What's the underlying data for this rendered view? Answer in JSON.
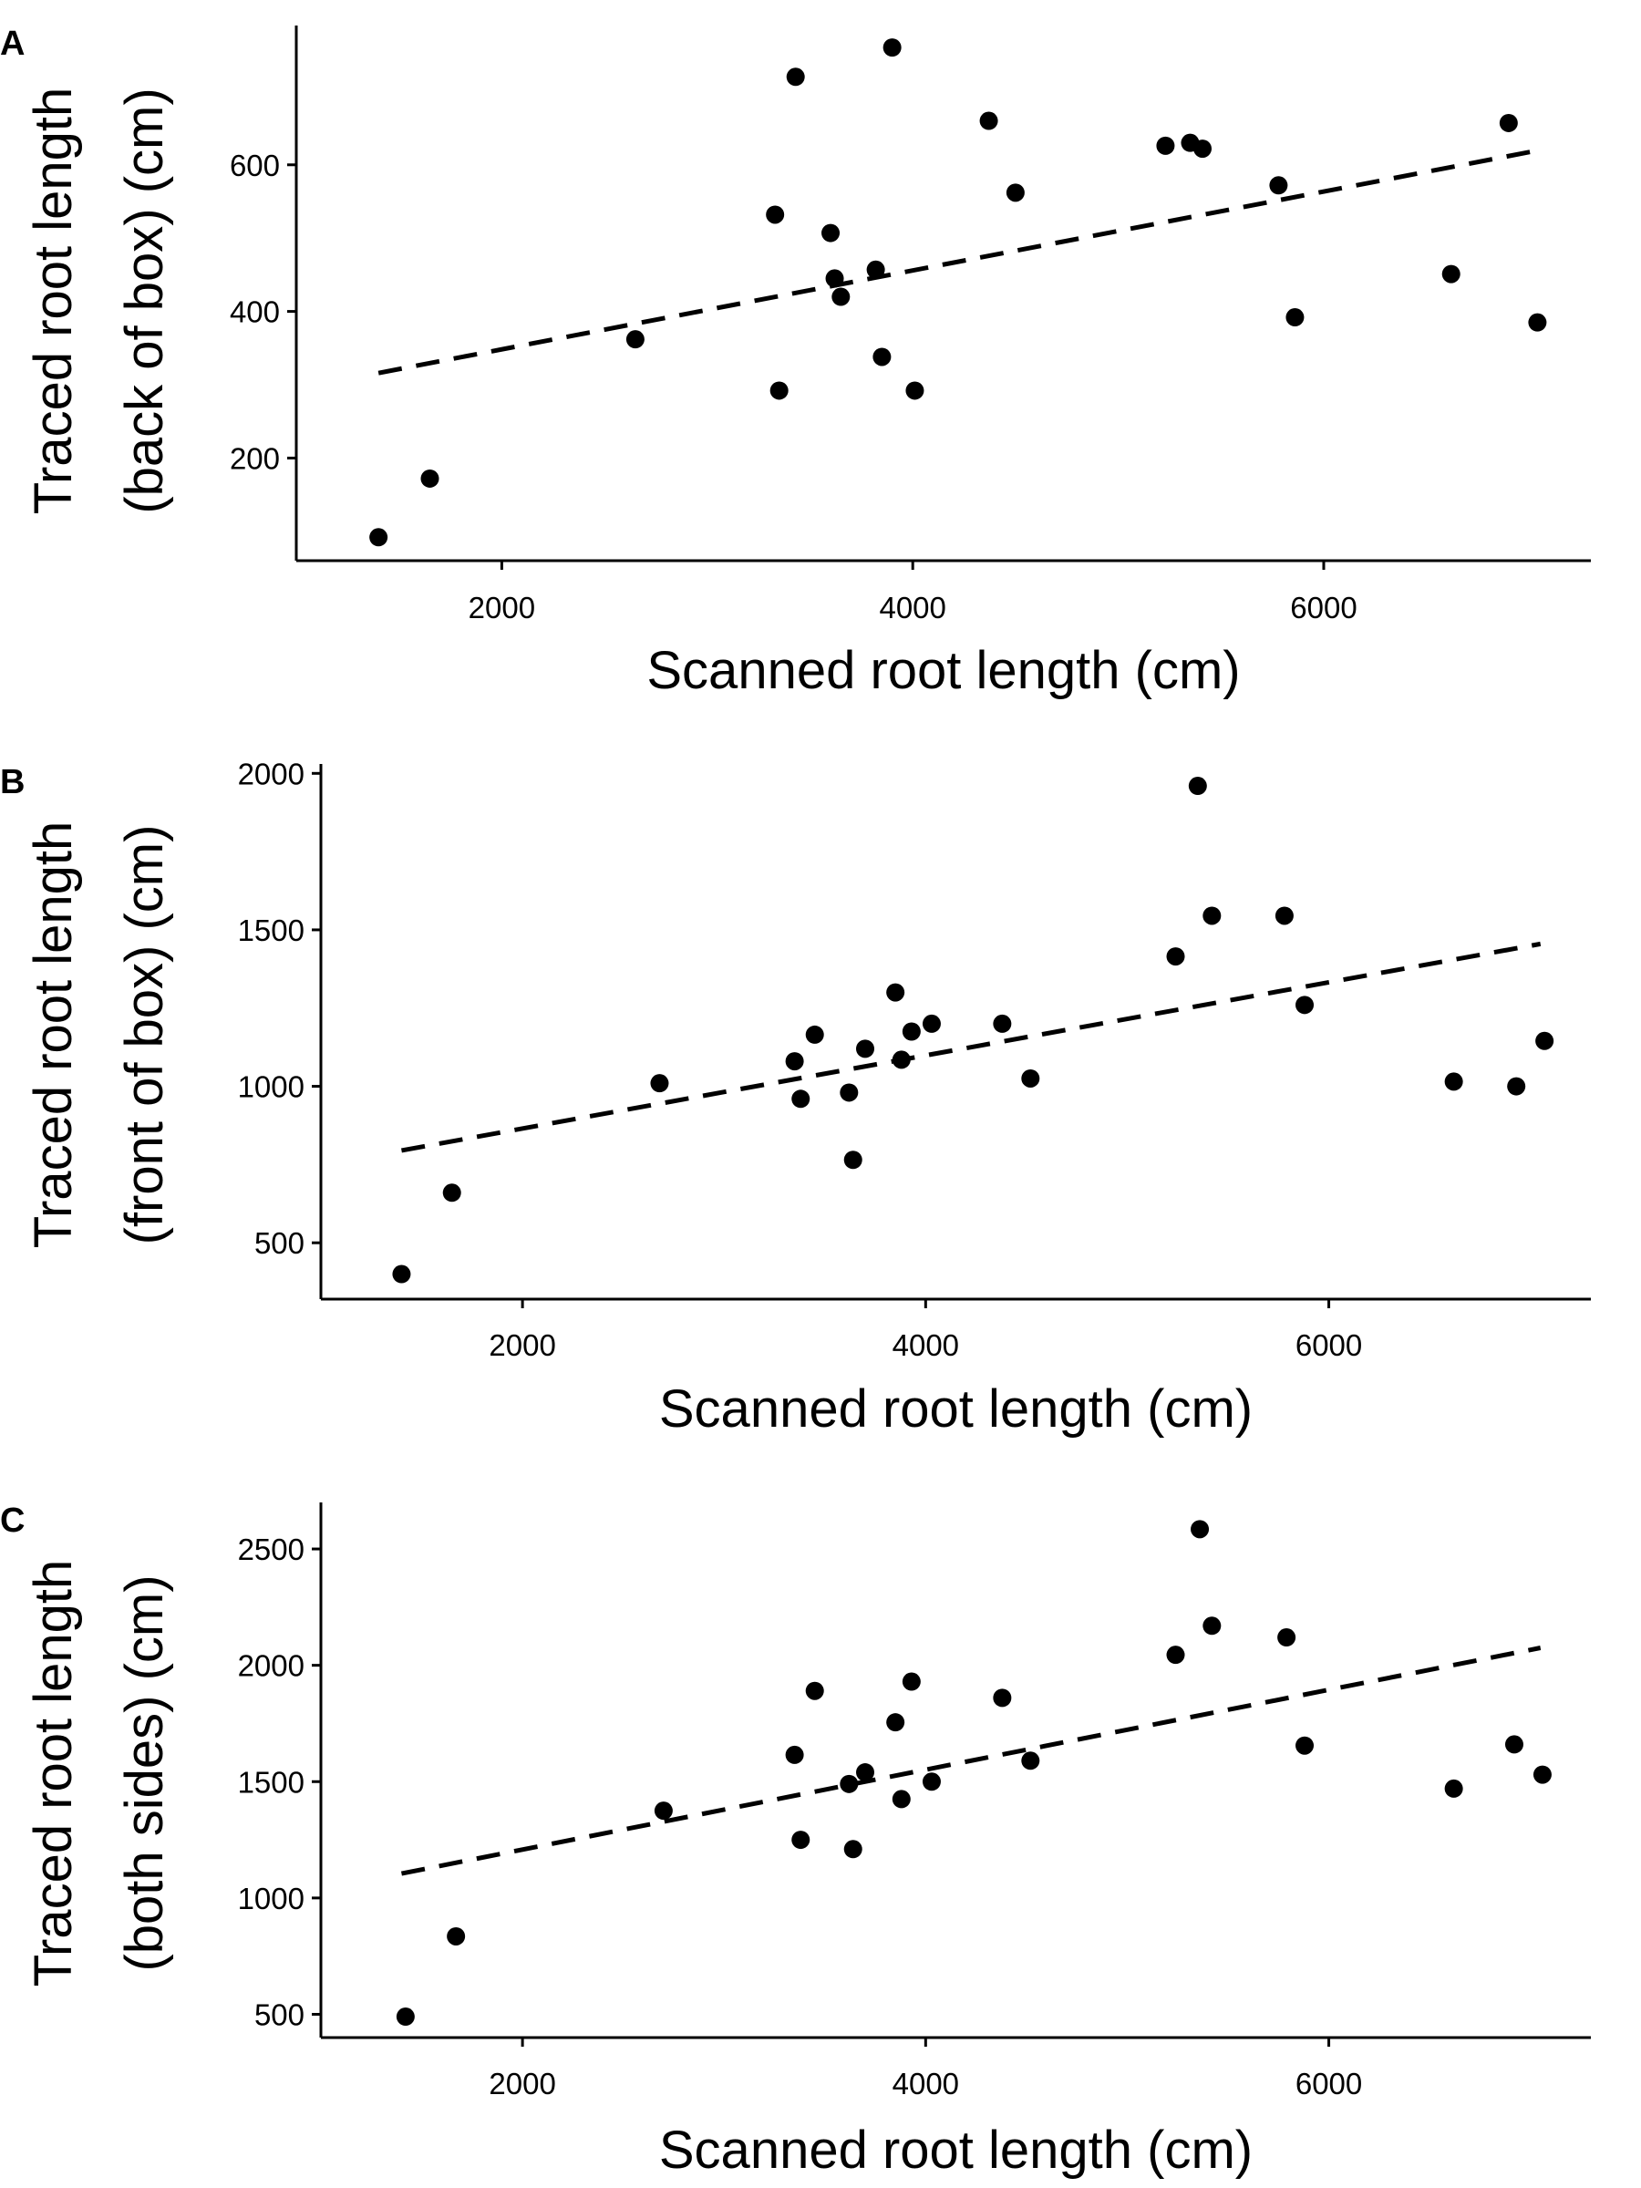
{
  "chart_data": [
    {
      "panel": "A",
      "type": "scatter",
      "xlabel": "Scanned root length (cm)",
      "ylabel_lines": [
        "Traced root length",
        "(back of box) (cm)"
      ],
      "xlim": [
        1000,
        7300
      ],
      "ylim": [
        60,
        790
      ],
      "xticks": [
        2000,
        4000,
        6000
      ],
      "yticks": [
        200,
        400,
        600
      ],
      "trend": {
        "style": "dashed",
        "x": [
          1400,
          7050
        ],
        "y": [
          316,
          620
        ]
      },
      "points": [
        {
          "x": 1400,
          "y": 92
        },
        {
          "x": 1650,
          "y": 172
        },
        {
          "x": 2650,
          "y": 362
        },
        {
          "x": 3350,
          "y": 292
        },
        {
          "x": 3330,
          "y": 532
        },
        {
          "x": 3430,
          "y": 720
        },
        {
          "x": 3600,
          "y": 507
        },
        {
          "x": 3620,
          "y": 445
        },
        {
          "x": 3650,
          "y": 420
        },
        {
          "x": 3820,
          "y": 457
        },
        {
          "x": 3850,
          "y": 338
        },
        {
          "x": 3900,
          "y": 760
        },
        {
          "x": 4010,
          "y": 292
        },
        {
          "x": 4370,
          "y": 660
        },
        {
          "x": 4500,
          "y": 562
        },
        {
          "x": 5230,
          "y": 626
        },
        {
          "x": 5350,
          "y": 630
        },
        {
          "x": 5410,
          "y": 622
        },
        {
          "x": 5780,
          "y": 572
        },
        {
          "x": 5860,
          "y": 392
        },
        {
          "x": 6620,
          "y": 451
        },
        {
          "x": 6900,
          "y": 657
        },
        {
          "x": 7040,
          "y": 385
        }
      ]
    },
    {
      "panel": "B",
      "type": "scatter",
      "xlabel": "Scanned root length (cm)",
      "ylabel_lines": [
        "Traced root length",
        "(front of box) (cm)"
      ],
      "xlim": [
        1000,
        7300
      ],
      "ylim": [
        320,
        2030
      ],
      "xticks": [
        2000,
        4000,
        6000
      ],
      "yticks": [
        500,
        1000,
        1500,
        2000
      ],
      "trend": {
        "style": "dashed",
        "x": [
          1400,
          7050
        ],
        "y": [
          795,
          1455
        ]
      },
      "points": [
        {
          "x": 1400,
          "y": 400
        },
        {
          "x": 1650,
          "y": 660
        },
        {
          "x": 2680,
          "y": 1010
        },
        {
          "x": 3350,
          "y": 1080
        },
        {
          "x": 3380,
          "y": 960
        },
        {
          "x": 3450,
          "y": 1165
        },
        {
          "x": 3620,
          "y": 980
        },
        {
          "x": 3640,
          "y": 765
        },
        {
          "x": 3700,
          "y": 1120
        },
        {
          "x": 3850,
          "y": 1300
        },
        {
          "x": 3880,
          "y": 1085
        },
        {
          "x": 3930,
          "y": 1175
        },
        {
          "x": 4030,
          "y": 1200
        },
        {
          "x": 4380,
          "y": 1200
        },
        {
          "x": 4520,
          "y": 1025
        },
        {
          "x": 5240,
          "y": 1415
        },
        {
          "x": 5350,
          "y": 1960
        },
        {
          "x": 5420,
          "y": 1545
        },
        {
          "x": 5780,
          "y": 1545
        },
        {
          "x": 5880,
          "y": 1260
        },
        {
          "x": 6620,
          "y": 1015
        },
        {
          "x": 6930,
          "y": 1000
        },
        {
          "x": 7070,
          "y": 1145
        }
      ]
    },
    {
      "panel": "C",
      "type": "scatter",
      "xlabel": "Scanned root length (cm)",
      "ylabel_lines": [
        "Traced root length",
        "(both sides) (cm)"
      ],
      "xlim": [
        1000,
        7300
      ],
      "ylim": [
        400,
        2700
      ],
      "xticks": [
        2000,
        4000,
        6000
      ],
      "yticks": [
        500,
        1000,
        1500,
        2000,
        2500
      ],
      "trend": {
        "style": "dashed",
        "x": [
          1400,
          7050
        ],
        "y": [
          1105,
          2075
        ]
      },
      "points": [
        {
          "x": 1420,
          "y": 490
        },
        {
          "x": 1670,
          "y": 835
        },
        {
          "x": 2700,
          "y": 1375
        },
        {
          "x": 3350,
          "y": 1615
        },
        {
          "x": 3380,
          "y": 1250
        },
        {
          "x": 3450,
          "y": 1890
        },
        {
          "x": 3620,
          "y": 1490
        },
        {
          "x": 3640,
          "y": 1210
        },
        {
          "x": 3700,
          "y": 1540
        },
        {
          "x": 3850,
          "y": 1755
        },
        {
          "x": 3880,
          "y": 1425
        },
        {
          "x": 3930,
          "y": 1930
        },
        {
          "x": 4030,
          "y": 1500
        },
        {
          "x": 4380,
          "y": 1860
        },
        {
          "x": 4520,
          "y": 1590
        },
        {
          "x": 5240,
          "y": 2045
        },
        {
          "x": 5360,
          "y": 2585
        },
        {
          "x": 5420,
          "y": 2170
        },
        {
          "x": 5790,
          "y": 2120
        },
        {
          "x": 5880,
          "y": 1655
        },
        {
          "x": 6620,
          "y": 1470
        },
        {
          "x": 6920,
          "y": 1660
        },
        {
          "x": 7060,
          "y": 1530
        }
      ]
    }
  ]
}
